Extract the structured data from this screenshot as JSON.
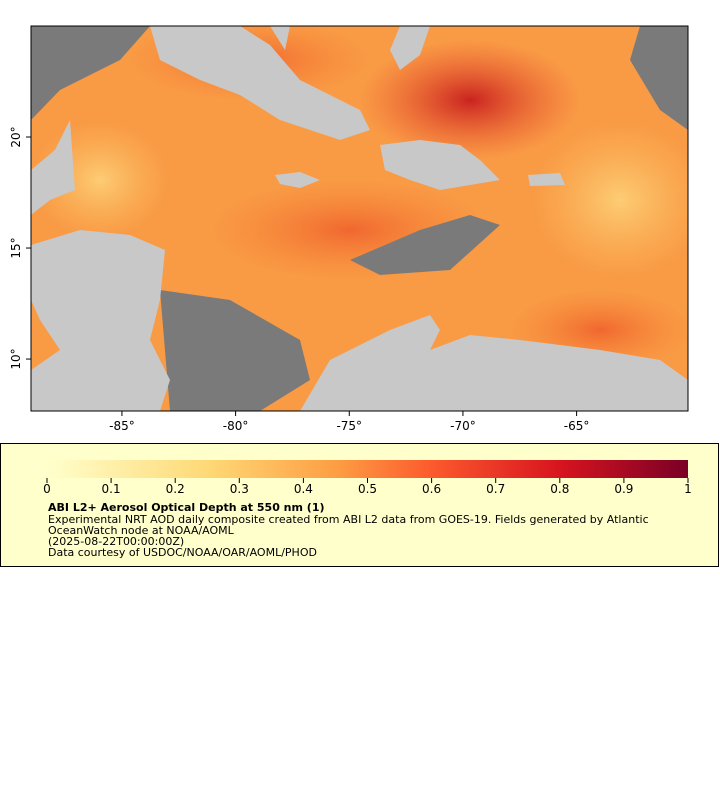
{
  "map": {
    "xlim": [
      -89,
      -60.1
    ],
    "ylim": [
      7.66,
      25
    ],
    "xticks": [
      {
        "value": -85,
        "label": "-85°"
      },
      {
        "value": -80,
        "label": "-80°"
      },
      {
        "value": -75,
        "label": "-75°"
      },
      {
        "value": -70,
        "label": "-70°"
      },
      {
        "value": -65,
        "label": "-65°"
      }
    ],
    "yticks": [
      {
        "value": 10,
        "label": "10°"
      },
      {
        "value": 15,
        "label": "15°"
      },
      {
        "value": 20,
        "label": "20°"
      }
    ]
  },
  "legend": {
    "lim": [
      0,
      1
    ],
    "ticks": [
      0,
      0.1,
      0.2,
      0.3,
      0.4,
      0.5,
      0.6,
      0.7,
      0.8,
      0.9,
      1
    ],
    "title": "ABI L2+ Aerosol Optical Depth at 550 nm (1)",
    "lines": [
      "Experimental NRT AOD daily composite created from ABI L2 data from GOES-19. Fields generated by Atlantic",
      "OceanWatch node at NOAA/AOML",
      "(2025-08-22T00:00:00Z)",
      "Data courtesy of USDOC/NOAA/OAR/AOML/PHOD"
    ]
  }
}
